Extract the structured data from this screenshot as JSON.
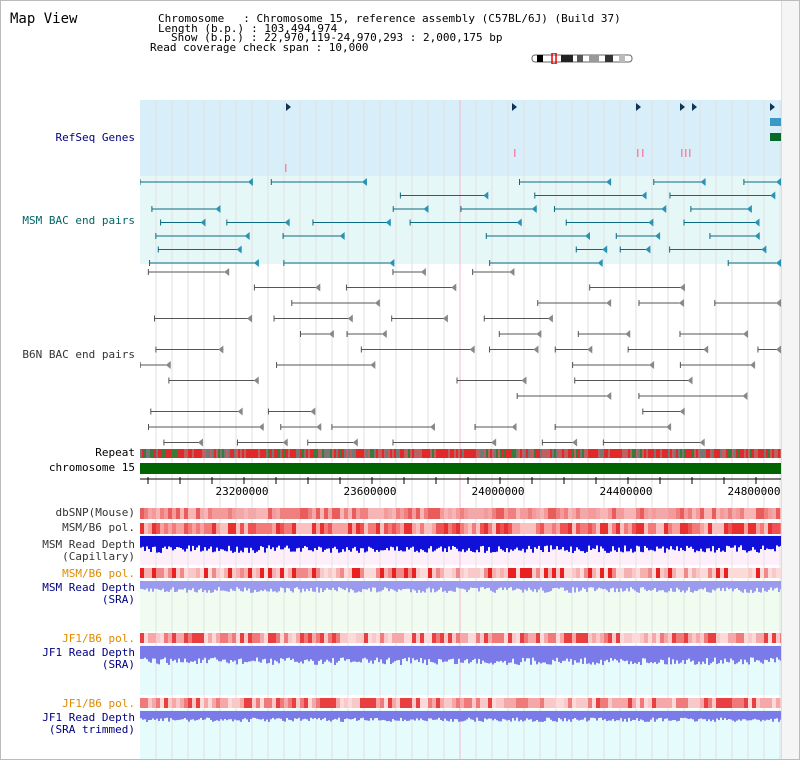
{
  "view": {
    "title": "Map View",
    "info": {
      "chromosome_key": "Chromosome",
      "chromosome_val": ": Chromosome 15, reference assembly (C57BL/6J) (Build 37)",
      "length_key": "Length (b.p.)",
      "length_val": ": 103,494,974",
      "show_key": "Show (b.p.)",
      "show_val": ": 22,970,119-24,970,293 : 2,000,175 bp",
      "coverage_line": "Read coverage check span : 10,000"
    }
  },
  "tracks": {
    "refseq": "RefSeq Genes",
    "msm_bac": "MSM BAC end pairs",
    "b6n_bac": "B6N BAC end pairs",
    "repeat": "Repeat",
    "chrom": "chromosome 15",
    "dbsnp": "dbSNP(Mouse)",
    "msm_b6_pol": "MSM/B6 pol.",
    "msm_depth_cap_1": "MSM Read Depth",
    "msm_depth_cap_2": "(Capillary)",
    "msm_b6_pol_2": "MSM/B6 pol.",
    "msm_depth_sra_1": "MSM Read Depth",
    "msm_depth_sra_2": "(SRA)",
    "jf1_b6_pol": "JF1/B6 pol.",
    "jf1_depth_sra_1": "JF1 Read Depth",
    "jf1_depth_sra_2": "(SRA)",
    "jf1_b6_pol_2": "JF1/B6 pol.",
    "jf1_depth_trim_1": "JF1 Read Depth",
    "jf1_depth_trim_2": "(SRA trimmed)"
  },
  "axis": {
    "ticks": [
      "23200000",
      "23600000",
      "24000000",
      "24400000",
      "24800000"
    ]
  },
  "colors": {
    "label_blue": "#000080",
    "label_teal": "#006666",
    "label_orange": "#e08a00",
    "refseq_bg": "#d8eef8",
    "bac_bg": "#e6f7f7",
    "chrom_green": "#006400"
  }
}
